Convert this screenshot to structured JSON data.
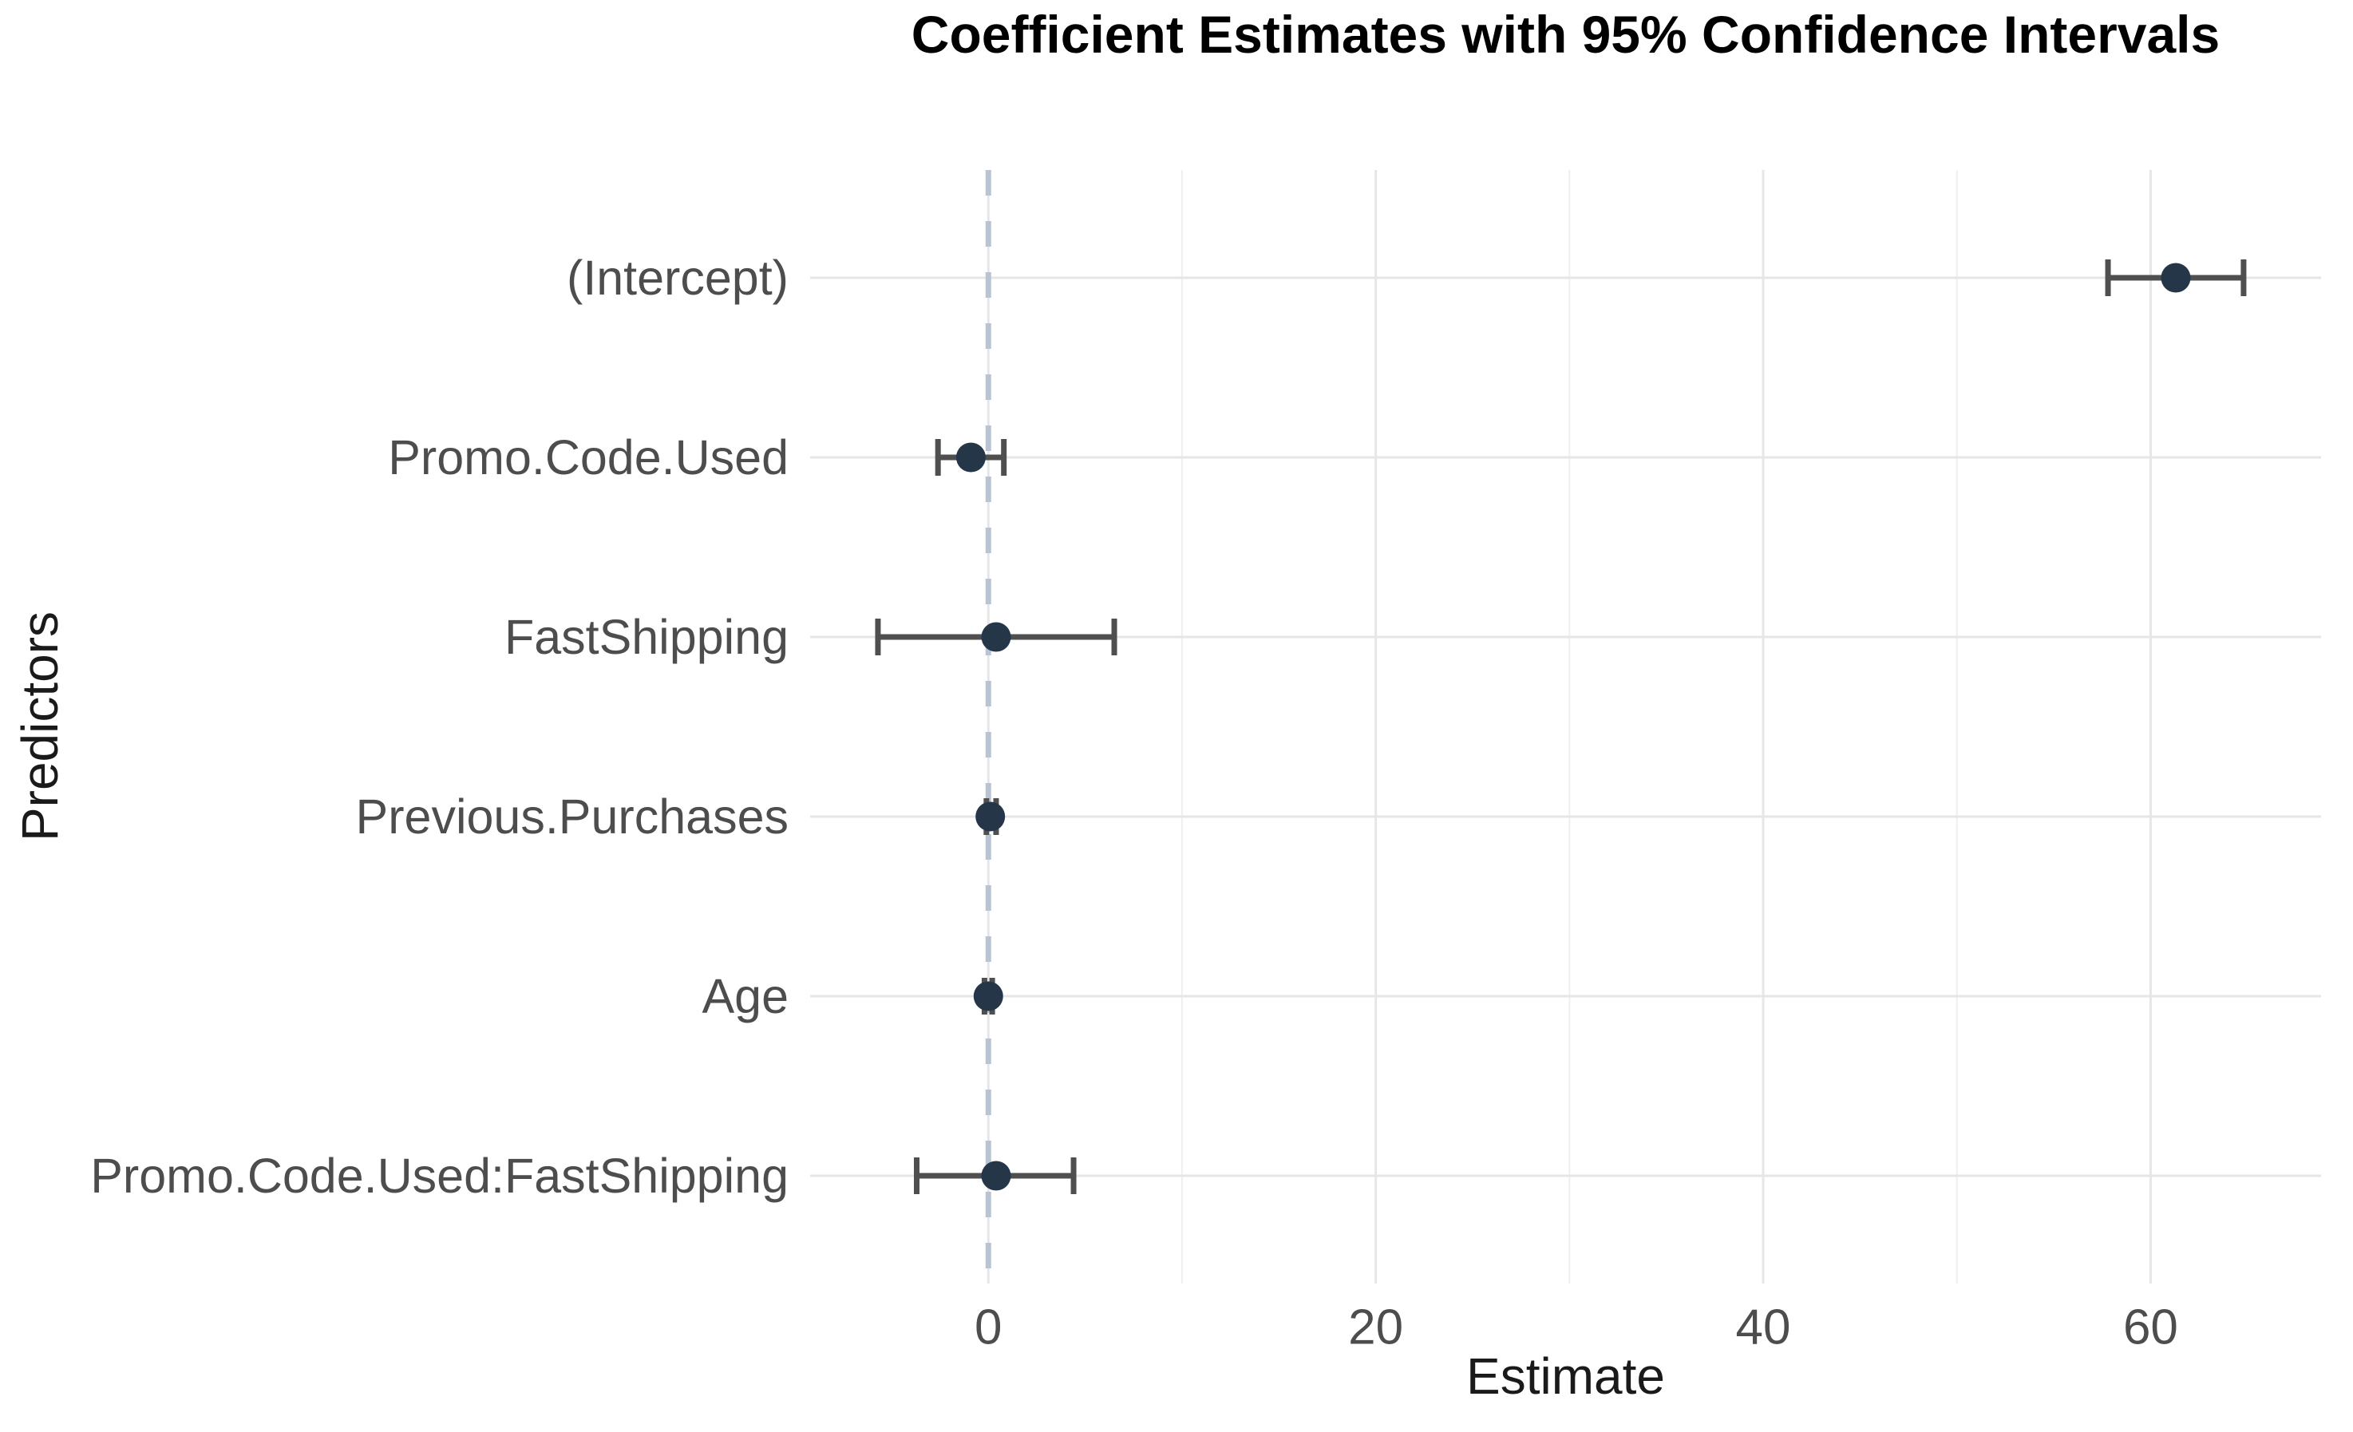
{
  "chart_data": {
    "type": "scatter",
    "subtype": "coefficient-dot-whisker",
    "title": "Coefficient Estimates with 95% Confidence Intervals",
    "xlabel": "Estimate",
    "ylabel": "Predictors",
    "legend": false,
    "grid": true,
    "orientation": "horizontal",
    "xlim": [
      -9.2,
      68.8
    ],
    "reference_line_x": 0,
    "x_ticks": [
      "0",
      "20",
      "40",
      "60"
    ],
    "x_tick_values": [
      0,
      20,
      40,
      60
    ],
    "x_minor_values": [
      10,
      30,
      50
    ],
    "categories": [
      "(Intercept)",
      "Promo.Code.Used",
      "FastShipping",
      "Previous.Purchases",
      "Age",
      "Promo.Code.Used:FastShipping"
    ],
    "points": [
      {
        "label": "(Intercept)",
        "estimate": 61.3,
        "ci_low": 57.8,
        "ci_high": 64.8
      },
      {
        "label": "Promo.Code.Used",
        "estimate": -0.9,
        "ci_low": -2.6,
        "ci_high": 0.8
      },
      {
        "label": "FastShipping",
        "estimate": 0.4,
        "ci_low": -5.7,
        "ci_high": 6.5
      },
      {
        "label": "Previous.Purchases",
        "estimate": 0.1,
        "ci_low": -0.1,
        "ci_high": 0.4
      },
      {
        "label": "Age",
        "estimate": 0.0,
        "ci_low": -0.2,
        "ci_high": 0.2
      },
      {
        "label": "Promo.Code.Used:FastShipping",
        "estimate": 0.4,
        "ci_low": -3.7,
        "ci_high": 4.4
      }
    ],
    "ci_level": "95%",
    "colors": {
      "point": "#253649",
      "errorbar": "#4f4f4f",
      "reference_line": "#b8c4d3",
      "grid_major": "#e6e6e6",
      "grid_minor": "#efefef",
      "axis_text": "#4d4d4d",
      "axis_title": "#1a1a1a",
      "title": "#000000",
      "background": "#ffffff"
    }
  }
}
